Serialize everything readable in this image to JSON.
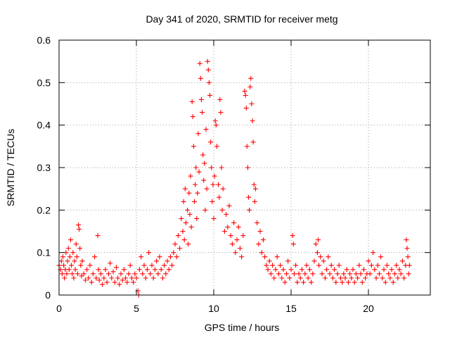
{
  "chart_data": {
    "type": "scatter",
    "title": "Day 341 of 2020, SRMTID for receiver metg",
    "xlabel": "GPS time / hours",
    "ylabel": "SRMTID / TECUs",
    "xlim": [
      0,
      24
    ],
    "ylim": [
      0,
      0.6
    ],
    "xticks": [
      0,
      5,
      10,
      15,
      20
    ],
    "yticks": [
      0,
      0.1,
      0.2,
      0.3,
      0.4,
      0.5,
      0.6
    ],
    "grid": true,
    "marker": "plus",
    "series": [
      {
        "name": "SRMTID",
        "color": "#ff0000",
        "points": [
          [
            0.0,
            0.07
          ],
          [
            0.1,
            0.06
          ],
          [
            0.15,
            0.08
          ],
          [
            0.2,
            0.05
          ],
          [
            0.25,
            0.09
          ],
          [
            0.3,
            0.07
          ],
          [
            0.35,
            0.04
          ],
          [
            0.4,
            0.06
          ],
          [
            0.45,
            0.1
          ],
          [
            0.5,
            0.05
          ],
          [
            0.55,
            0.08
          ],
          [
            0.6,
            0.11
          ],
          [
            0.65,
            0.06
          ],
          [
            0.7,
            0.09
          ],
          [
            0.75,
            0.13
          ],
          [
            0.8,
            0.07
          ],
          [
            0.85,
            0.05
          ],
          [
            0.9,
            0.1
          ],
          [
            0.95,
            0.04
          ],
          [
            1.0,
            0.08
          ],
          [
            1.05,
            0.06
          ],
          [
            1.1,
            0.12
          ],
          [
            1.15,
            0.09
          ],
          [
            1.2,
            0.05
          ],
          [
            1.25,
            0.165
          ],
          [
            1.3,
            0.155
          ],
          [
            1.35,
            0.11
          ],
          [
            1.4,
            0.07
          ],
          [
            1.45,
            0.045
          ],
          [
            1.5,
            0.08
          ],
          [
            1.6,
            0.05
          ],
          [
            1.7,
            0.035
          ],
          [
            1.8,
            0.06
          ],
          [
            1.9,
            0.04
          ],
          [
            2.0,
            0.07
          ],
          [
            2.1,
            0.03
          ],
          [
            2.2,
            0.05
          ],
          [
            2.3,
            0.09
          ],
          [
            2.4,
            0.04
          ],
          [
            2.5,
            0.14
          ],
          [
            2.55,
            0.06
          ],
          [
            2.6,
            0.035
          ],
          [
            2.7,
            0.05
          ],
          [
            2.8,
            0.025
          ],
          [
            2.9,
            0.04
          ],
          [
            3.0,
            0.06
          ],
          [
            3.1,
            0.03
          ],
          [
            3.2,
            0.05
          ],
          [
            3.3,
            0.075
          ],
          [
            3.4,
            0.04
          ],
          [
            3.5,
            0.055
          ],
          [
            3.6,
            0.03
          ],
          [
            3.7,
            0.065
          ],
          [
            3.8,
            0.04
          ],
          [
            3.9,
            0.025
          ],
          [
            4.0,
            0.05
          ],
          [
            4.1,
            0.035
          ],
          [
            4.2,
            0.06
          ],
          [
            4.3,
            0.04
          ],
          [
            4.4,
            0.03
          ],
          [
            4.5,
            0.05
          ],
          [
            4.6,
            0.07
          ],
          [
            4.7,
            0.04
          ],
          [
            4.8,
            0.03
          ],
          [
            4.9,
            0.05
          ],
          [
            5.0,
            0.04
          ],
          [
            5.1,
            0.01
          ],
          [
            5.15,
            0.0
          ],
          [
            5.2,
            0.06
          ],
          [
            5.3,
            0.09
          ],
          [
            5.4,
            0.05
          ],
          [
            5.5,
            0.07
          ],
          [
            5.6,
            0.04
          ],
          [
            5.7,
            0.06
          ],
          [
            5.8,
            0.1
          ],
          [
            5.9,
            0.05
          ],
          [
            6.0,
            0.07
          ],
          [
            6.1,
            0.04
          ],
          [
            6.2,
            0.06
          ],
          [
            6.3,
            0.08
          ],
          [
            6.4,
            0.05
          ],
          [
            6.5,
            0.09
          ],
          [
            6.6,
            0.06
          ],
          [
            6.7,
            0.04
          ],
          [
            6.8,
            0.07
          ],
          [
            6.9,
            0.05
          ],
          [
            7.0,
            0.08
          ],
          [
            7.1,
            0.06
          ],
          [
            7.2,
            0.09
          ],
          [
            7.3,
            0.07
          ],
          [
            7.4,
            0.1
          ],
          [
            7.5,
            0.12
          ],
          [
            7.6,
            0.09
          ],
          [
            7.7,
            0.14
          ],
          [
            7.8,
            0.11
          ],
          [
            7.9,
            0.18
          ],
          [
            8.0,
            0.15
          ],
          [
            8.05,
            0.22
          ],
          [
            8.1,
            0.13
          ],
          [
            8.15,
            0.25
          ],
          [
            8.2,
            0.17
          ],
          [
            8.3,
            0.2
          ],
          [
            8.35,
            0.12
          ],
          [
            8.4,
            0.24
          ],
          [
            8.45,
            0.19
          ],
          [
            8.5,
            0.28
          ],
          [
            8.55,
            0.16
          ],
          [
            8.6,
            0.455
          ],
          [
            8.65,
            0.42
          ],
          [
            8.7,
            0.35
          ],
          [
            8.75,
            0.22
          ],
          [
            8.8,
            0.26
          ],
          [
            8.85,
            0.3
          ],
          [
            8.9,
            0.18
          ],
          [
            8.95,
            0.24
          ],
          [
            9.0,
            0.38
          ],
          [
            9.05,
            0.29
          ],
          [
            9.1,
            0.545
          ],
          [
            9.15,
            0.51
          ],
          [
            9.2,
            0.46
          ],
          [
            9.25,
            0.43
          ],
          [
            9.3,
            0.33
          ],
          [
            9.35,
            0.27
          ],
          [
            9.4,
            0.31
          ],
          [
            9.45,
            0.2
          ],
          [
            9.5,
            0.39
          ],
          [
            9.55,
            0.25
          ],
          [
            9.6,
            0.55
          ],
          [
            9.65,
            0.53
          ],
          [
            9.7,
            0.5
          ],
          [
            9.75,
            0.47
          ],
          [
            9.8,
            0.36
          ],
          [
            9.85,
            0.3
          ],
          [
            9.9,
            0.22
          ],
          [
            9.95,
            0.26
          ],
          [
            10.0,
            0.18
          ],
          [
            10.05,
            0.28
          ],
          [
            10.1,
            0.41
          ],
          [
            10.15,
            0.4
          ],
          [
            10.2,
            0.35
          ],
          [
            10.3,
            0.26
          ],
          [
            10.35,
            0.23
          ],
          [
            10.4,
            0.46
          ],
          [
            10.45,
            0.43
          ],
          [
            10.5,
            0.3
          ],
          [
            10.55,
            0.2
          ],
          [
            10.6,
            0.25
          ],
          [
            10.7,
            0.15
          ],
          [
            10.8,
            0.19
          ],
          [
            10.9,
            0.16
          ],
          [
            11.0,
            0.21
          ],
          [
            11.1,
            0.14
          ],
          [
            11.2,
            0.12
          ],
          [
            11.3,
            0.17
          ],
          [
            11.4,
            0.1
          ],
          [
            11.5,
            0.13
          ],
          [
            11.6,
            0.16
          ],
          [
            11.7,
            0.11
          ],
          [
            11.8,
            0.09
          ],
          [
            11.9,
            0.14
          ],
          [
            12.0,
            0.48
          ],
          [
            12.05,
            0.47
          ],
          [
            12.1,
            0.44
          ],
          [
            12.15,
            0.35
          ],
          [
            12.2,
            0.3
          ],
          [
            12.25,
            0.23
          ],
          [
            12.3,
            0.2
          ],
          [
            12.35,
            0.49
          ],
          [
            12.4,
            0.51
          ],
          [
            12.45,
            0.45
          ],
          [
            12.5,
            0.41
          ],
          [
            12.55,
            0.36
          ],
          [
            12.6,
            0.26
          ],
          [
            12.65,
            0.22
          ],
          [
            12.7,
            0.25
          ],
          [
            12.8,
            0.17
          ],
          [
            12.9,
            0.12
          ],
          [
            13.0,
            0.15
          ],
          [
            13.1,
            0.1
          ],
          [
            13.2,
            0.13
          ],
          [
            13.3,
            0.09
          ],
          [
            13.4,
            0.07
          ],
          [
            13.5,
            0.06
          ],
          [
            13.6,
            0.08
          ],
          [
            13.7,
            0.05
          ],
          [
            13.8,
            0.07
          ],
          [
            13.9,
            0.04
          ],
          [
            14.0,
            0.06
          ],
          [
            14.1,
            0.09
          ],
          [
            14.2,
            0.05
          ],
          [
            14.3,
            0.07
          ],
          [
            14.4,
            0.04
          ],
          [
            14.5,
            0.06
          ],
          [
            14.6,
            0.03
          ],
          [
            14.7,
            0.05
          ],
          [
            14.8,
            0.08
          ],
          [
            14.9,
            0.04
          ],
          [
            15.0,
            0.06
          ],
          [
            15.1,
            0.14
          ],
          [
            15.15,
            0.12
          ],
          [
            15.2,
            0.05
          ],
          [
            15.3,
            0.07
          ],
          [
            15.4,
            0.03
          ],
          [
            15.5,
            0.05
          ],
          [
            15.6,
            0.04
          ],
          [
            15.7,
            0.06
          ],
          [
            15.8,
            0.03
          ],
          [
            15.9,
            0.05
          ],
          [
            16.0,
            0.07
          ],
          [
            16.1,
            0.04
          ],
          [
            16.2,
            0.06
          ],
          [
            16.3,
            0.03
          ],
          [
            16.4,
            0.05
          ],
          [
            16.5,
            0.08
          ],
          [
            16.6,
            0.12
          ],
          [
            16.7,
            0.1
          ],
          [
            16.75,
            0.13
          ],
          [
            16.8,
            0.07
          ],
          [
            16.9,
            0.09
          ],
          [
            17.0,
            0.05
          ],
          [
            17.1,
            0.08
          ],
          [
            17.2,
            0.04
          ],
          [
            17.3,
            0.06
          ],
          [
            17.4,
            0.09
          ],
          [
            17.5,
            0.05
          ],
          [
            17.6,
            0.07
          ],
          [
            17.7,
            0.04
          ],
          [
            17.8,
            0.06
          ],
          [
            17.9,
            0.03
          ],
          [
            18.0,
            0.05
          ],
          [
            18.1,
            0.07
          ],
          [
            18.2,
            0.04
          ],
          [
            18.3,
            0.03
          ],
          [
            18.4,
            0.05
          ],
          [
            18.5,
            0.04
          ],
          [
            18.6,
            0.06
          ],
          [
            18.7,
            0.03
          ],
          [
            18.8,
            0.05
          ],
          [
            18.9,
            0.04
          ],
          [
            19.0,
            0.06
          ],
          [
            19.1,
            0.03
          ],
          [
            19.2,
            0.05
          ],
          [
            19.3,
            0.04
          ],
          [
            19.4,
            0.07
          ],
          [
            19.5,
            0.05
          ],
          [
            19.6,
            0.03
          ],
          [
            19.7,
            0.06
          ],
          [
            19.8,
            0.04
          ],
          [
            19.9,
            0.05
          ],
          [
            20.0,
            0.08
          ],
          [
            20.1,
            0.05
          ],
          [
            20.2,
            0.07
          ],
          [
            20.3,
            0.1
          ],
          [
            20.4,
            0.06
          ],
          [
            20.5,
            0.04
          ],
          [
            20.6,
            0.07
          ],
          [
            20.7,
            0.05
          ],
          [
            20.8,
            0.09
          ],
          [
            20.9,
            0.04
          ],
          [
            21.0,
            0.06
          ],
          [
            21.1,
            0.03
          ],
          [
            21.2,
            0.07
          ],
          [
            21.3,
            0.05
          ],
          [
            21.4,
            0.04
          ],
          [
            21.5,
            0.06
          ],
          [
            21.6,
            0.03
          ],
          [
            21.7,
            0.05
          ],
          [
            21.8,
            0.07
          ],
          [
            21.9,
            0.04
          ],
          [
            22.0,
            0.06
          ],
          [
            22.1,
            0.05
          ],
          [
            22.2,
            0.08
          ],
          [
            22.3,
            0.04
          ],
          [
            22.4,
            0.07
          ],
          [
            22.45,
            0.13
          ],
          [
            22.5,
            0.11
          ],
          [
            22.55,
            0.09
          ],
          [
            22.6,
            0.05
          ],
          [
            22.65,
            0.07
          ]
        ]
      }
    ]
  }
}
